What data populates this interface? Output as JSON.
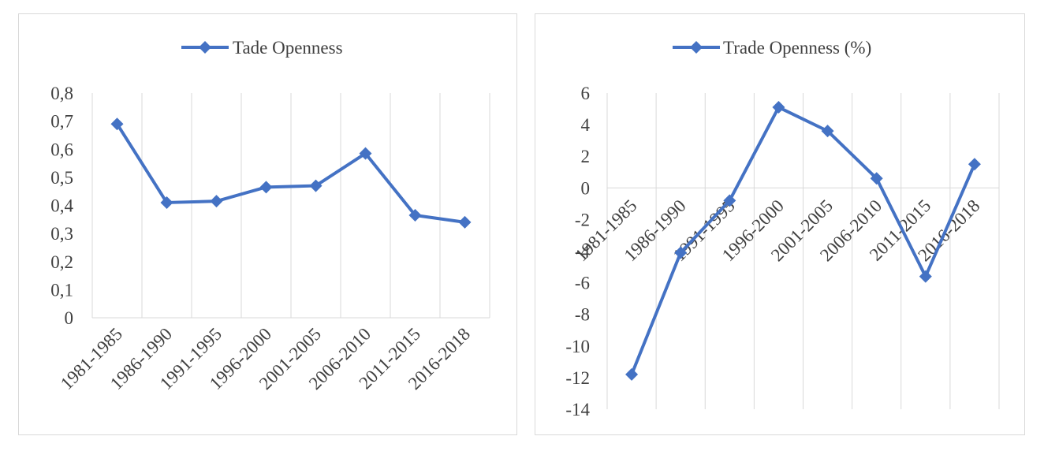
{
  "theme": {
    "series_color": "#4472c4",
    "grid_color": "#d9d9d9",
    "text_color": "#404040"
  },
  "chart_data": [
    {
      "type": "line",
      "legend": "Tade Openness",
      "legend_position": "top",
      "categories": [
        "1981-1985",
        "1986-1990",
        "1991-1995",
        "1996-2000",
        "2001-2005",
        "2006-2010",
        "2011-2015",
        "2016-2018"
      ],
      "series": [
        {
          "name": "Tade Openness",
          "values": [
            0.69,
            0.41,
            0.415,
            0.465,
            0.47,
            0.585,
            0.365,
            0.34
          ]
        }
      ],
      "ylim": [
        0,
        0.8
      ],
      "yticks": [
        0,
        0.1,
        0.2,
        0.3,
        0.4,
        0.5,
        0.6,
        0.7,
        0.8
      ],
      "ytick_labels": [
        "0",
        "0,1",
        "0,2",
        "0,3",
        "0,4",
        "0,5",
        "0,6",
        "0,7",
        "0,8"
      ],
      "marker": "diamond",
      "grid": "vertical"
    },
    {
      "type": "line",
      "legend": "Trade Openness (%)",
      "legend_position": "top",
      "categories": [
        "1981-1985",
        "1986-1990",
        "1991-1995",
        "1996-2000",
        "2001-2005",
        "2006-2010",
        "2011-2015",
        "2016-2018"
      ],
      "series": [
        {
          "name": "Trade Openness (%)",
          "values": [
            -11.8,
            -4.1,
            -0.8,
            5.1,
            3.6,
            0.6,
            -5.6,
            1.5
          ]
        }
      ],
      "ylim": [
        -14,
        6
      ],
      "yticks": [
        -14,
        -12,
        -10,
        -8,
        -6,
        -4,
        -2,
        0,
        2,
        4,
        6
      ],
      "ytick_labels": [
        "-14",
        "-12",
        "-10",
        "-8",
        "-6",
        "-4",
        "-2",
        "0",
        "2",
        "4",
        "6"
      ],
      "marker": "diamond",
      "grid": "vertical"
    }
  ]
}
